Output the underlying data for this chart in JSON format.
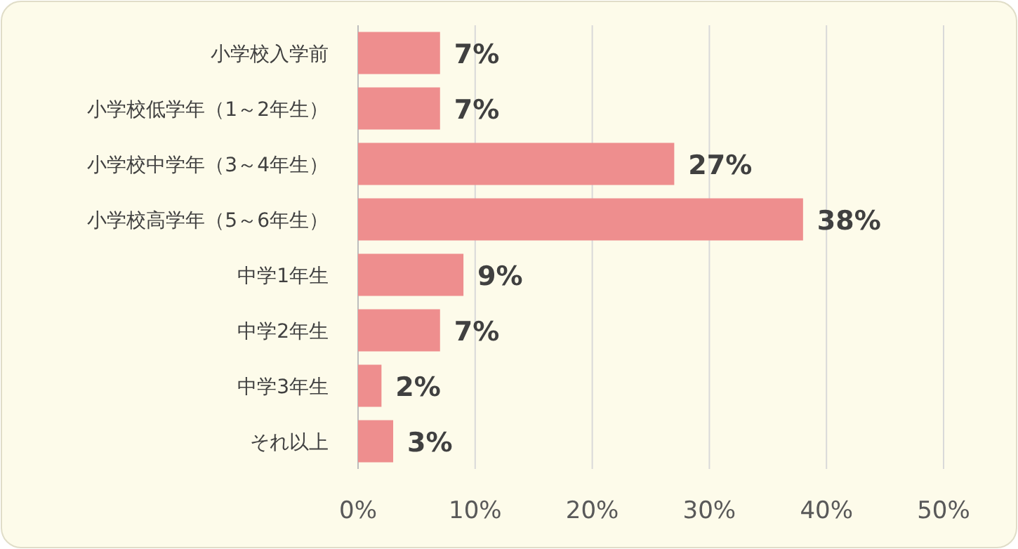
{
  "chart_data": {
    "type": "bar",
    "orientation": "horizontal",
    "categories": [
      "小学校入学前",
      "小学校低学年（1～2年生）",
      "小学校中学年（3～4年生）",
      "小学校高学年（5～6年生）",
      "中学1年生",
      "中学2年生",
      "中学3年生",
      "それ以上"
    ],
    "values": [
      7,
      7,
      27,
      38,
      9,
      7,
      2,
      3
    ],
    "value_labels": [
      "7%",
      "7%",
      "27%",
      "38%",
      "9%",
      "7%",
      "2%",
      "3%"
    ],
    "color": "#ee8e8e",
    "xlim": [
      0,
      50
    ],
    "xticks": [
      {
        "value": 0,
        "label": "0%"
      },
      {
        "value": 10,
        "label": "10%"
      },
      {
        "value": 20,
        "label": "20%"
      },
      {
        "value": 30,
        "label": "30%"
      },
      {
        "value": 40,
        "label": "40%"
      },
      {
        "value": 50,
        "label": "50%"
      }
    ],
    "grid": "x"
  }
}
